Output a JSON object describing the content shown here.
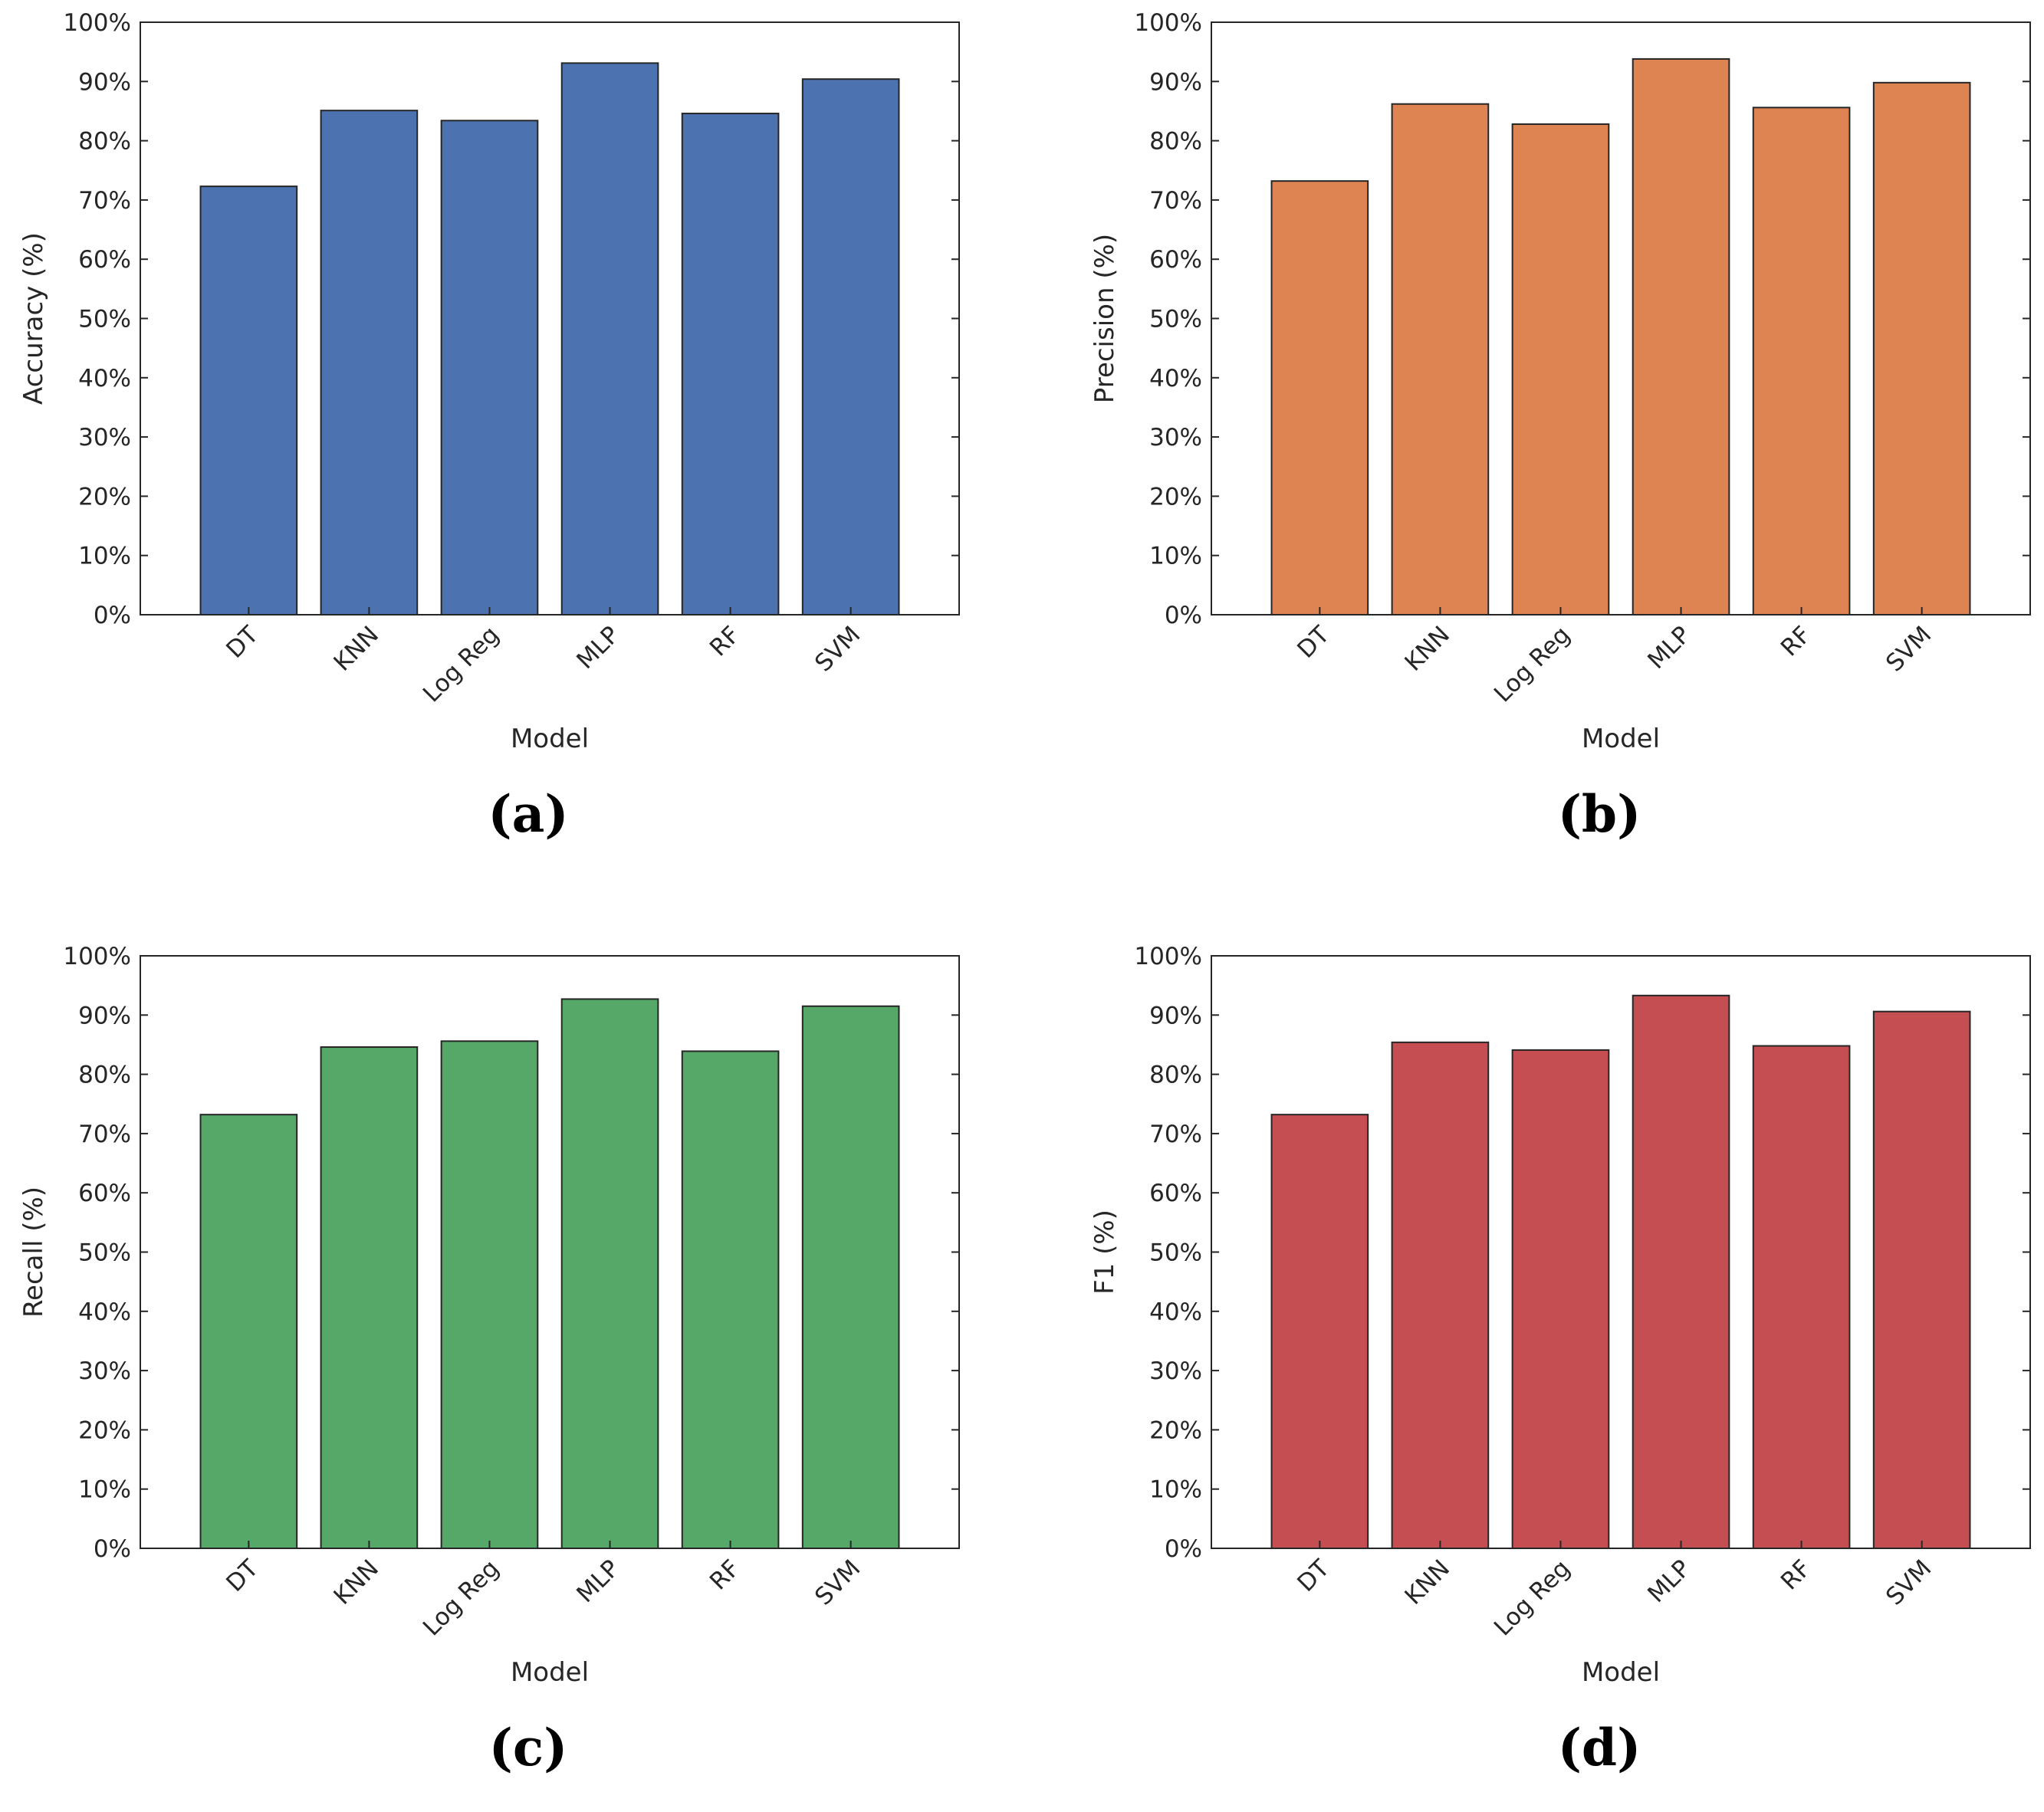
{
  "chart_data": [
    {
      "type": "bar",
      "panel_label": "(a)",
      "categories": [
        "DT",
        "KNN",
        "Log Reg",
        "MLP",
        "RF",
        "SVM"
      ],
      "values": [
        72.3,
        85.1,
        83.4,
        93.1,
        84.6,
        90.4
      ],
      "xlabel": "Model",
      "ylabel": "Accuracy (%)",
      "ylim": [
        0,
        100
      ],
      "yticks": [
        "0%",
        "10%",
        "20%",
        "30%",
        "40%",
        "50%",
        "60%",
        "70%",
        "80%",
        "90%",
        "100%"
      ],
      "bar_color": "#4c72b0"
    },
    {
      "type": "bar",
      "panel_label": "(b)",
      "categories": [
        "DT",
        "KNN",
        "Log Reg",
        "MLP",
        "RF",
        "SVM"
      ],
      "values": [
        73.2,
        86.2,
        82.8,
        93.8,
        85.6,
        89.8
      ],
      "xlabel": "Model",
      "ylabel": "Precision (%)",
      "ylim": [
        0,
        100
      ],
      "yticks": [
        "0%",
        "10%",
        "20%",
        "30%",
        "40%",
        "50%",
        "60%",
        "70%",
        "80%",
        "90%",
        "100%"
      ],
      "bar_color": "#dd8452"
    },
    {
      "type": "bar",
      "panel_label": "(c)",
      "categories": [
        "DT",
        "KNN",
        "Log Reg",
        "MLP",
        "RF",
        "SVM"
      ],
      "values": [
        73.2,
        84.6,
        85.6,
        92.7,
        83.9,
        91.5
      ],
      "xlabel": "Model",
      "ylabel": "Recall (%)",
      "ylim": [
        0,
        100
      ],
      "yticks": [
        "0%",
        "10%",
        "20%",
        "30%",
        "40%",
        "50%",
        "60%",
        "70%",
        "80%",
        "90%",
        "100%"
      ],
      "bar_color": "#55a868"
    },
    {
      "type": "bar",
      "panel_label": "(d)",
      "categories": [
        "DT",
        "KNN",
        "Log Reg",
        "MLP",
        "RF",
        "SVM"
      ],
      "values": [
        73.2,
        85.4,
        84.1,
        93.3,
        84.8,
        90.6
      ],
      "xlabel": "Model",
      "ylabel": "F1 (%)",
      "ylim": [
        0,
        100
      ],
      "yticks": [
        "0%",
        "10%",
        "20%",
        "30%",
        "40%",
        "50%",
        "60%",
        "70%",
        "80%",
        "90%",
        "100%"
      ],
      "bar_color": "#c44e52"
    }
  ]
}
